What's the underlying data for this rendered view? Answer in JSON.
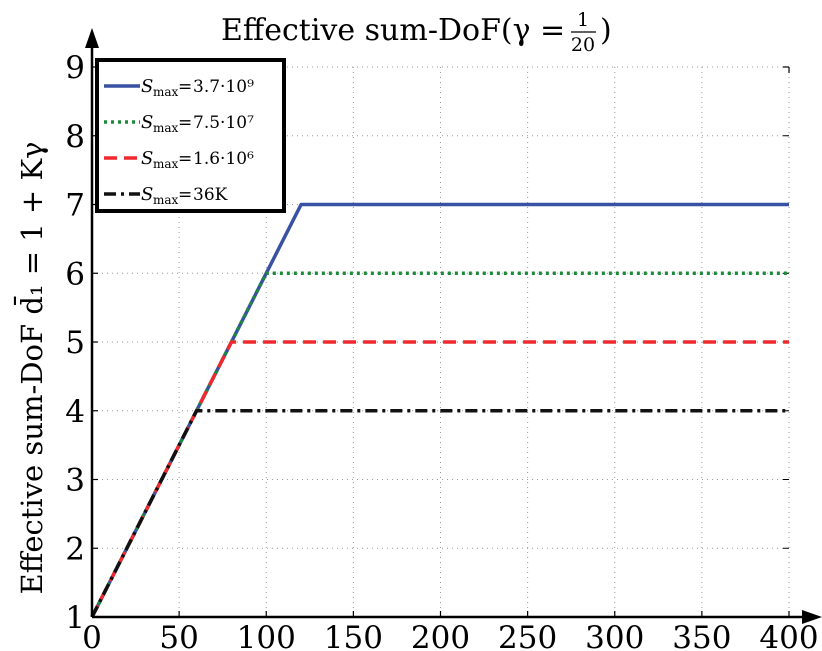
{
  "chart_data": {
    "type": "line",
    "title": "Effective sum-DoF(γ = 1/20)",
    "title_parts": {
      "main": "Effective sum-DoF(γ = ",
      "num": "1",
      "den": "20",
      "close": ")"
    },
    "ylabel": "Effective sum-DoF d̄₁ = 1 + Kγ",
    "xlabel": "",
    "xlim": [
      0,
      400
    ],
    "ylim": [
      1,
      9
    ],
    "xticks": [
      0,
      50,
      100,
      150,
      200,
      250,
      300,
      350,
      400
    ],
    "yticks": [
      1,
      2,
      3,
      4,
      5,
      6,
      7,
      8,
      9
    ],
    "grid": true,
    "legend_position": "top-left",
    "series": [
      {
        "name": "S_max = 3.7·10⁹",
        "legend_sub": "max",
        "legend_value": "3.7·10⁹",
        "color": "#3851a3",
        "dash": "solid",
        "x": [
          0,
          120,
          400
        ],
        "y": [
          1,
          7,
          7
        ]
      },
      {
        "name": "S_max = 7.5·10⁷",
        "legend_sub": "max",
        "legend_value": "7.5·10⁷",
        "color": "#1b8a3a",
        "dash": "dotted",
        "x": [
          0,
          100,
          400
        ],
        "y": [
          1,
          6,
          6
        ]
      },
      {
        "name": "S_max = 1.6·10⁶",
        "legend_sub": "max",
        "legend_value": "1.6·10⁶",
        "color": "#ee2a2f",
        "dash": "dashed",
        "x": [
          0,
          80,
          400
        ],
        "y": [
          1,
          5,
          5
        ]
      },
      {
        "name": "S_max = 36K",
        "legend_sub": "max",
        "legend_value": "36K",
        "color": "#111111",
        "dash": "dashdot",
        "x": [
          0,
          60,
          400
        ],
        "y": [
          1,
          4,
          4
        ]
      }
    ]
  }
}
